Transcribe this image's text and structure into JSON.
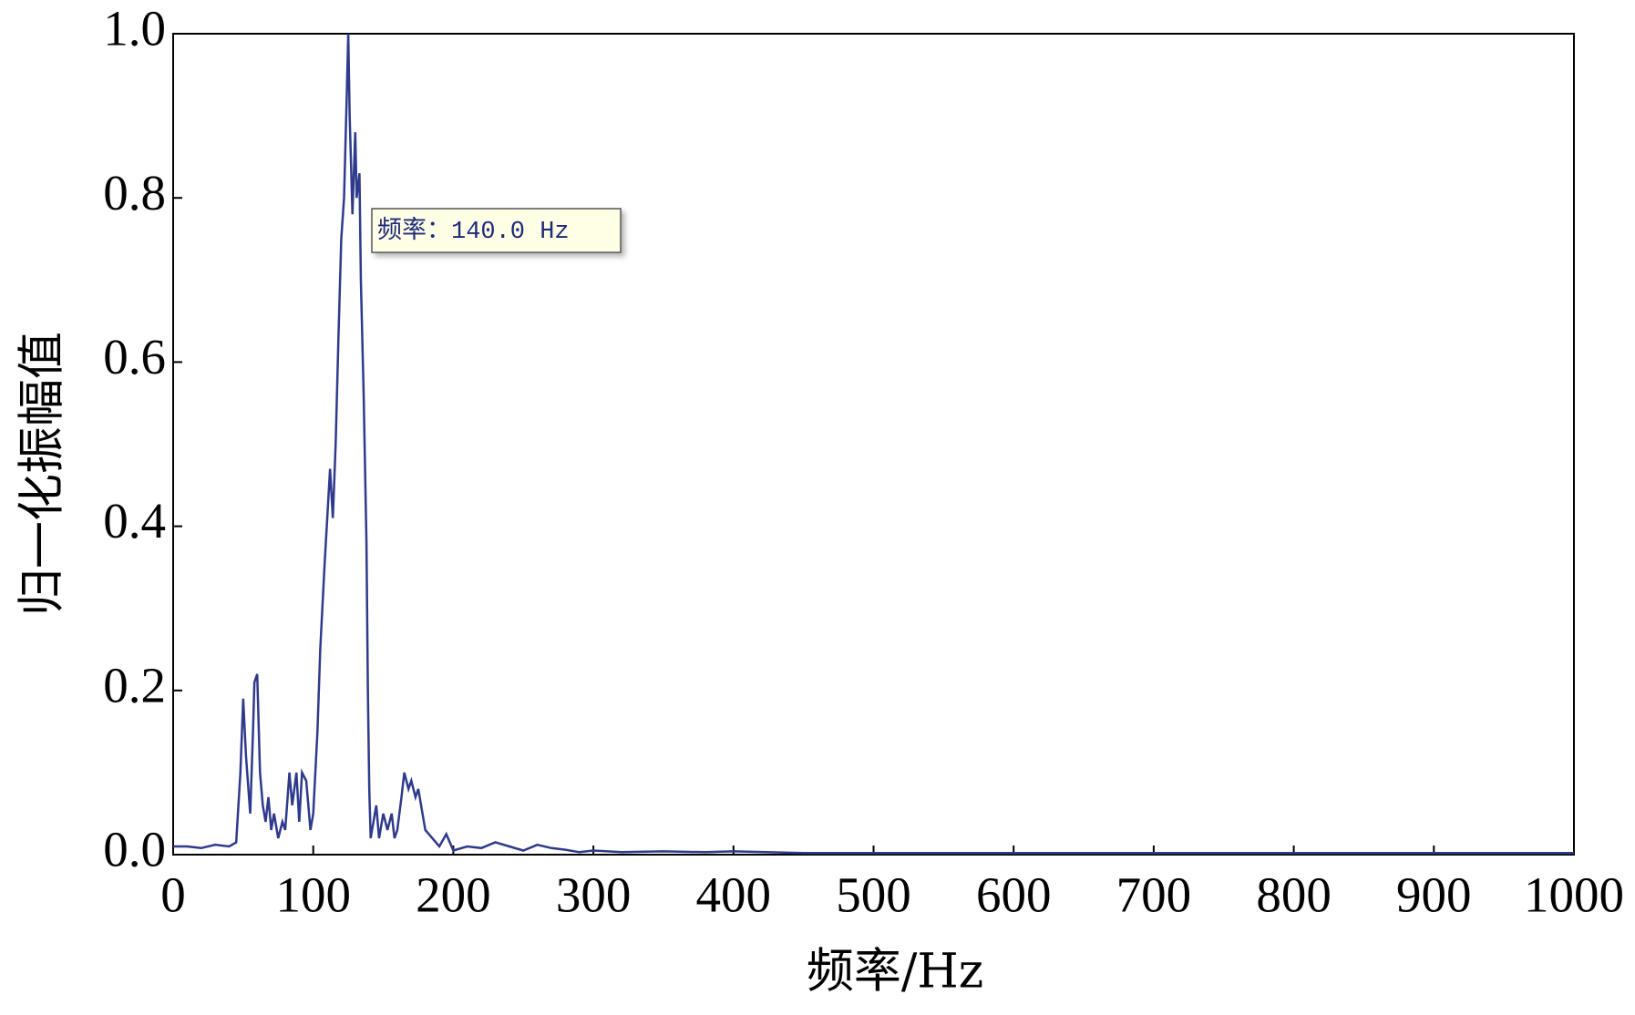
{
  "chart_data": {
    "type": "line",
    "xlabel": "频率/Hz",
    "ylabel": "归一化振幅值",
    "annotation": "频率：140.0 Hz",
    "x": [
      0,
      10,
      20,
      30,
      40,
      45,
      48,
      50,
      52,
      55,
      57,
      58,
      60,
      62,
      64,
      66,
      68,
      70,
      72,
      75,
      78,
      80,
      83,
      85,
      88,
      90,
      92,
      95,
      98,
      100,
      103,
      105,
      108,
      110,
      112,
      114,
      116,
      118,
      120,
      122,
      124,
      125,
      126,
      128,
      130,
      131,
      133,
      134,
      136,
      138,
      139,
      140,
      141,
      143,
      145,
      147,
      150,
      153,
      156,
      158,
      160,
      163,
      165,
      168,
      170,
      173,
      175,
      178,
      180,
      185,
      190,
      195,
      200,
      210,
      220,
      230,
      240,
      250,
      260,
      270,
      280,
      290,
      300,
      320,
      350,
      380,
      400,
      450,
      500,
      600,
      700,
      800,
      900,
      1000
    ],
    "series": [
      {
        "color": "#2e3a8c",
        "values": [
          0.01,
          0.01,
          0.008,
          0.012,
          0.01,
          0.015,
          0.1,
          0.19,
          0.12,
          0.05,
          0.15,
          0.21,
          0.22,
          0.1,
          0.06,
          0.04,
          0.07,
          0.03,
          0.05,
          0.02,
          0.04,
          0.03,
          0.1,
          0.06,
          0.1,
          0.04,
          0.1,
          0.09,
          0.03,
          0.05,
          0.15,
          0.25,
          0.35,
          0.41,
          0.47,
          0.41,
          0.5,
          0.63,
          0.75,
          0.8,
          0.93,
          1.0,
          0.9,
          0.78,
          0.88,
          0.8,
          0.83,
          0.7,
          0.56,
          0.38,
          0.2,
          0.08,
          0.02,
          0.04,
          0.06,
          0.02,
          0.05,
          0.03,
          0.05,
          0.02,
          0.03,
          0.07,
          0.1,
          0.08,
          0.09,
          0.07,
          0.08,
          0.05,
          0.03,
          0.02,
          0.01,
          0.025,
          0.005,
          0.01,
          0.008,
          0.015,
          0.01,
          0.005,
          0.012,
          0.008,
          0.006,
          0.003,
          0.005,
          0.003,
          0.004,
          0.003,
          0.004,
          0.002,
          0.002,
          0.002,
          0.002,
          0.002,
          0.002,
          0.002
        ]
      }
    ],
    "xlim": [
      0,
      1000
    ],
    "xticks": [
      0,
      100,
      200,
      300,
      400,
      500,
      600,
      700,
      800,
      900,
      1000
    ],
    "ylim": [
      0,
      1.0
    ],
    "yticks": [
      {
        "value": 0,
        "label": "0.0"
      },
      0.2,
      0.4,
      0.6,
      0.8,
      {
        "value": 1,
        "label": "1.0"
      }
    ]
  }
}
